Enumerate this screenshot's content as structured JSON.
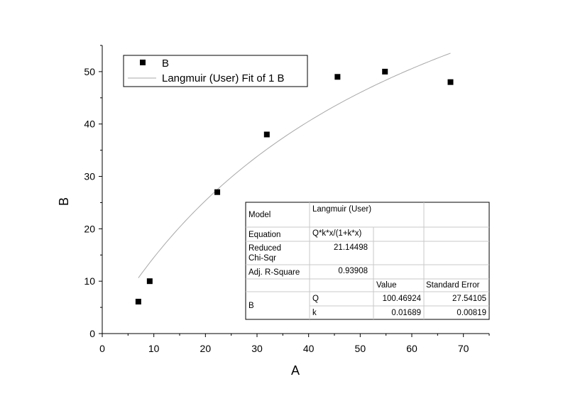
{
  "chart_data": {
    "type": "scatter",
    "xlabel": "A",
    "ylabel": "B",
    "xlim": [
      0,
      75
    ],
    "ylim": [
      0,
      55
    ],
    "x_ticks": [
      "0",
      "10",
      "20",
      "30",
      "40",
      "50",
      "60",
      "70"
    ],
    "y_ticks": [
      "0",
      "10",
      "20",
      "30",
      "40",
      "50"
    ],
    "grid": false,
    "legend_position": "top-left",
    "series": [
      {
        "name": "B",
        "kind": "scatter",
        "marker": "square",
        "color": "#000000",
        "x": [
          7.0,
          9.2,
          22.3,
          31.9,
          45.6,
          54.8,
          67.5
        ],
        "y": [
          6.1,
          10.0,
          27.0,
          38.0,
          49.0,
          50.0,
          48.0
        ]
      },
      {
        "name": "Langmuir (User) Fit of 1 B",
        "kind": "line",
        "color": "#a8a8a8",
        "x_range": [
          7.0,
          67.5
        ],
        "Q": 100.46924,
        "k": 0.01689
      }
    ],
    "fit_table": {
      "rows": [
        {
          "label": "Model",
          "value": "Langmuir (User)"
        },
        {
          "label": "Equation",
          "value": "Q*k*x/(1+k*x)"
        },
        {
          "label_lines": [
            "Reduced",
            "Chi-Sqr"
          ],
          "value": "21.14498"
        },
        {
          "label": "Adj. R-Square",
          "value": "0.93908"
        }
      ],
      "header": [
        "Value",
        "Standard Error"
      ],
      "group_label": "B",
      "params": [
        {
          "name": "Q",
          "value": "100.46924",
          "error": "27.54105"
        },
        {
          "name": "k",
          "value": "0.01689",
          "error": "0.00819"
        }
      ]
    }
  }
}
